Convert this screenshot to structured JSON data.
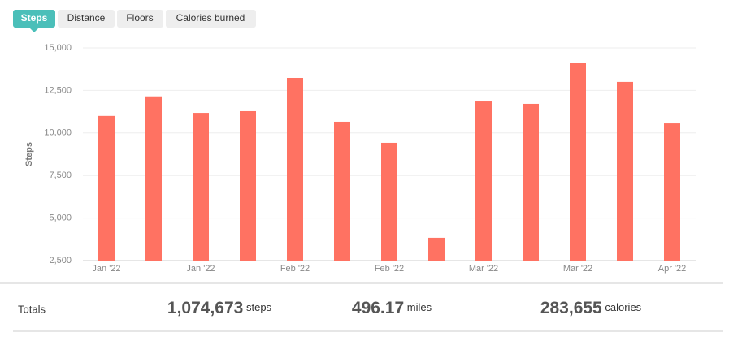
{
  "tabs": [
    "Steps",
    "Distance",
    "Floors",
    "Calories burned"
  ],
  "chart_data": {
    "type": "bar",
    "y_label": "Steps",
    "categories": [
      "Jan '22",
      null,
      "Jan '22",
      null,
      "Feb '22",
      null,
      "Feb '22",
      null,
      "Mar '22",
      null,
      "Mar '22",
      null,
      "Apr '22"
    ],
    "values": [
      11000,
      12150,
      11180,
      11280,
      13235,
      10660,
      9420,
      3840,
      11850,
      11710,
      14140,
      13000,
      10560
    ],
    "color": "#ff7262",
    "ylim": [
      2500,
      15000
    ],
    "yticks": [
      {
        "value": 2500,
        "label": "2,500"
      },
      {
        "value": 5000,
        "label": "5,000"
      },
      {
        "value": 7500,
        "label": "7,500"
      },
      {
        "value": 10000,
        "label": "10,000"
      },
      {
        "value": 12500,
        "label": "12,500"
      },
      {
        "value": 15000,
        "label": "15,000"
      }
    ],
    "grid": true
  },
  "totals": {
    "label": "Totals",
    "items": [
      {
        "value": "1,074,673",
        "unit": "steps"
      },
      {
        "value": "496.17",
        "unit": "miles"
      },
      {
        "value": "283,655",
        "unit": "calories"
      }
    ]
  }
}
